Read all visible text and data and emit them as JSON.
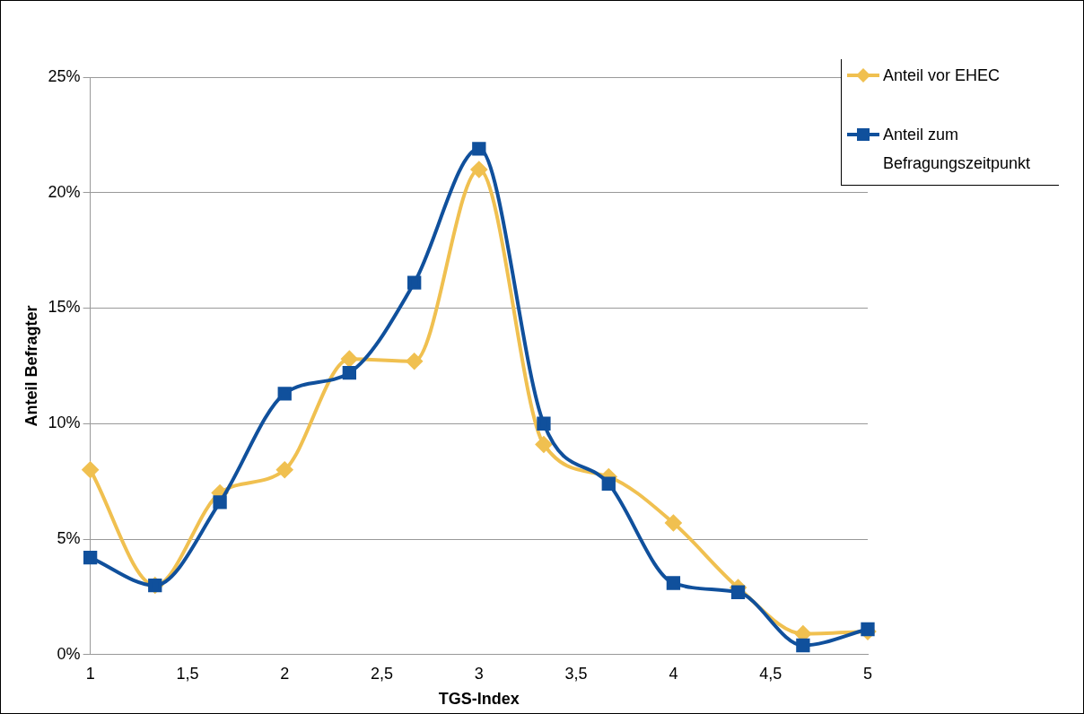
{
  "chart_data": {
    "type": "line",
    "xlabel": "TGS-Index",
    "ylabel": "Anteil Befragter",
    "x": [
      1,
      1.333,
      1.667,
      2,
      2.333,
      2.667,
      3,
      3.333,
      3.667,
      4,
      4.333,
      4.667,
      5
    ],
    "series": [
      {
        "name": "Anteil vor EHEC",
        "color": "#f0c050",
        "marker": "diamond",
        "values": [
          8.0,
          3.0,
          7.0,
          8.0,
          12.8,
          12.7,
          21.0,
          9.1,
          7.7,
          5.7,
          2.9,
          0.9,
          1.0
        ]
      },
      {
        "name": "Anteil zum Befragungszeitpunkt",
        "color": "#10509c",
        "marker": "square",
        "values": [
          4.2,
          3.0,
          6.6,
          11.3,
          12.2,
          16.1,
          21.9,
          10.0,
          7.4,
          3.1,
          2.7,
          0.4,
          1.1
        ]
      }
    ],
    "xlim": [
      1,
      5
    ],
    "xticks": [
      {
        "value": 1,
        "label": "1"
      },
      {
        "value": 1.5,
        "label": "1,5"
      },
      {
        "value": 2,
        "label": "2"
      },
      {
        "value": 2.5,
        "label": "2,5"
      },
      {
        "value": 3,
        "label": "3"
      },
      {
        "value": 3.5,
        "label": "3,5"
      },
      {
        "value": 4,
        "label": "4"
      },
      {
        "value": 4.5,
        "label": "4,5"
      },
      {
        "value": 5,
        "label": "5"
      }
    ],
    "ylim": [
      0,
      25
    ],
    "yticks": [
      {
        "value": 0,
        "label": "0%"
      },
      {
        "value": 5,
        "label": "5%"
      },
      {
        "value": 10,
        "label": "10%"
      },
      {
        "value": 15,
        "label": "15%"
      },
      {
        "value": 20,
        "label": "20%"
      },
      {
        "value": 25,
        "label": "25%"
      }
    ],
    "grid": "y",
    "legend": "top right",
    "line_style": "solid"
  }
}
